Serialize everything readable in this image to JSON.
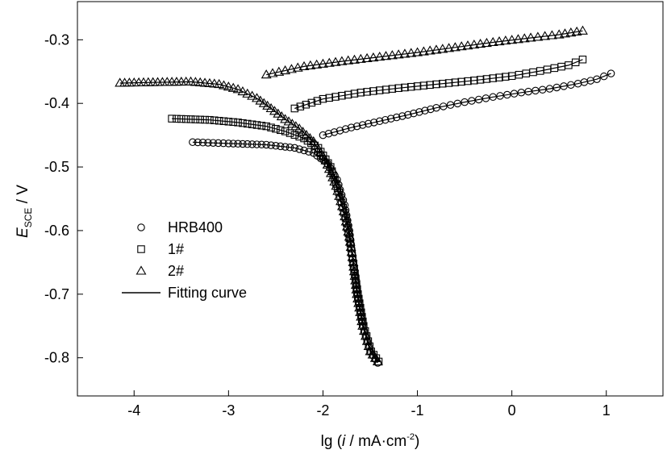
{
  "chart_data": {
    "type": "scatter",
    "title": "",
    "xlabel": "lg (i / mA·cm⁻²)",
    "xlabel_parts": {
      "prefix": "lg (",
      "italic": "i",
      "unit": " / mA·cm",
      "exp": "-2",
      "suffix": ")"
    },
    "ylabel": "E_SCE / V",
    "ylabel_parts": {
      "main": "E",
      "sub": "SCE",
      "unit": " / V"
    },
    "xlim": [
      -4.6,
      1.6
    ],
    "ylim": [
      -0.86,
      -0.24
    ],
    "x_ticks": [
      -4,
      -3,
      -2,
      -1,
      0,
      1
    ],
    "x_tick_labels": [
      "-4",
      "-3",
      "-2",
      "-1",
      "0",
      "1"
    ],
    "y_ticks": [
      -0.3,
      -0.4,
      -0.5,
      -0.6,
      -0.7,
      -0.8
    ],
    "y_tick_labels": [
      "-0.3",
      "-0.4",
      "-0.5",
      "-0.6",
      "-0.7",
      "-0.8"
    ],
    "grid": false,
    "legend_position": "lower-left",
    "series": [
      {
        "name": "HRB400",
        "marker": "circle",
        "anodic": [
          [
            -2.0,
            -0.45
          ],
          [
            -1.7,
            -0.438
          ],
          [
            -1.4,
            -0.428
          ],
          [
            -1.1,
            -0.418
          ],
          [
            -0.8,
            -0.407
          ],
          [
            -0.5,
            -0.398
          ],
          [
            -0.2,
            -0.39
          ],
          [
            0.1,
            -0.383
          ],
          [
            0.4,
            -0.377
          ],
          [
            0.7,
            -0.369
          ],
          [
            0.9,
            -0.362
          ],
          [
            1.05,
            -0.353
          ]
        ],
        "cathodic": [
          [
            -3.38,
            -0.461
          ],
          [
            -3.0,
            -0.463
          ],
          [
            -2.6,
            -0.465
          ],
          [
            -2.3,
            -0.47
          ],
          [
            -2.1,
            -0.478
          ],
          [
            -1.95,
            -0.495
          ],
          [
            -1.85,
            -0.52
          ],
          [
            -1.77,
            -0.56
          ],
          [
            -1.72,
            -0.6
          ],
          [
            -1.68,
            -0.65
          ],
          [
            -1.64,
            -0.7
          ],
          [
            -1.58,
            -0.75
          ],
          [
            -1.5,
            -0.79
          ],
          [
            -1.42,
            -0.808
          ]
        ]
      },
      {
        "name": "1#",
        "marker": "square",
        "anodic": [
          [
            -2.3,
            -0.408
          ],
          [
            -2.0,
            -0.393
          ],
          [
            -1.6,
            -0.383
          ],
          [
            -1.2,
            -0.376
          ],
          [
            -0.8,
            -0.37
          ],
          [
            -0.4,
            -0.364
          ],
          [
            0.0,
            -0.357
          ],
          [
            0.3,
            -0.349
          ],
          [
            0.6,
            -0.34
          ],
          [
            0.75,
            -0.331
          ]
        ],
        "cathodic": [
          [
            -3.6,
            -0.424
          ],
          [
            -3.2,
            -0.426
          ],
          [
            -2.9,
            -0.43
          ],
          [
            -2.6,
            -0.436
          ],
          [
            -2.4,
            -0.444
          ],
          [
            -2.2,
            -0.455
          ],
          [
            -2.05,
            -0.47
          ],
          [
            -1.92,
            -0.5
          ],
          [
            -1.83,
            -0.54
          ],
          [
            -1.76,
            -0.58
          ],
          [
            -1.71,
            -0.62
          ],
          [
            -1.67,
            -0.66
          ],
          [
            -1.63,
            -0.7
          ],
          [
            -1.57,
            -0.75
          ],
          [
            -1.49,
            -0.79
          ],
          [
            -1.41,
            -0.806
          ]
        ]
      },
      {
        "name": "2#",
        "marker": "triangle",
        "anodic": [
          [
            -2.6,
            -0.355
          ],
          [
            -2.2,
            -0.342
          ],
          [
            -1.8,
            -0.334
          ],
          [
            -1.4,
            -0.327
          ],
          [
            -1.0,
            -0.32
          ],
          [
            -0.6,
            -0.312
          ],
          [
            -0.2,
            -0.304
          ],
          [
            0.2,
            -0.297
          ],
          [
            0.5,
            -0.292
          ],
          [
            0.75,
            -0.286
          ]
        ],
        "cathodic": [
          [
            -4.15,
            -0.368
          ],
          [
            -3.8,
            -0.367
          ],
          [
            -3.4,
            -0.366
          ],
          [
            -3.1,
            -0.37
          ],
          [
            -2.9,
            -0.378
          ],
          [
            -2.7,
            -0.392
          ],
          [
            -2.55,
            -0.408
          ],
          [
            -2.4,
            -0.425
          ],
          [
            -2.25,
            -0.44
          ],
          [
            -2.1,
            -0.46
          ],
          [
            -1.97,
            -0.49
          ],
          [
            -1.86,
            -0.53
          ],
          [
            -1.78,
            -0.57
          ],
          [
            -1.72,
            -0.61
          ],
          [
            -1.68,
            -0.65
          ],
          [
            -1.64,
            -0.7
          ],
          [
            -1.58,
            -0.75
          ],
          [
            -1.5,
            -0.79
          ],
          [
            -1.42,
            -0.806
          ]
        ]
      }
    ],
    "legend": {
      "items": [
        {
          "label": "HRB400",
          "marker": "circle"
        },
        {
          "label": "1#",
          "marker": "square"
        },
        {
          "label": "2#",
          "marker": "triangle"
        },
        {
          "label": "Fitting curve",
          "marker": "line"
        }
      ]
    }
  }
}
